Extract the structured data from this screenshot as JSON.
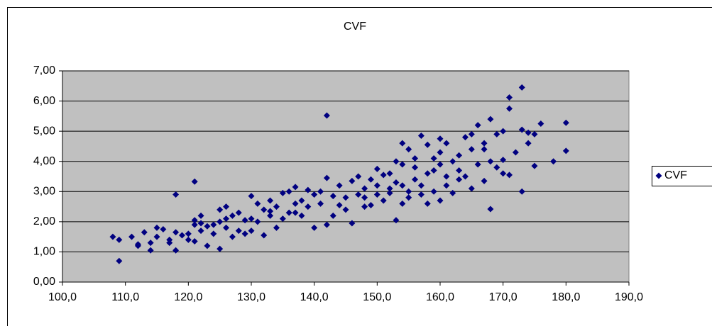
{
  "chart_data": {
    "type": "scatter",
    "title": "CVF",
    "x": [
      108,
      109,
      109,
      111,
      112,
      112,
      113,
      114,
      114,
      115,
      115,
      116,
      117,
      117,
      118,
      118,
      118,
      119,
      120,
      120,
      121,
      121,
      121,
      121,
      122,
      122,
      123,
      123,
      124,
      125,
      125,
      125,
      126,
      126,
      127,
      127,
      128,
      128,
      129,
      130,
      130,
      130,
      131,
      131,
      132,
      132,
      133,
      133,
      134,
      134,
      135,
      135,
      136,
      136,
      137,
      137,
      138,
      138,
      139,
      139,
      140,
      140,
      141,
      142,
      142,
      142,
      143,
      143,
      144,
      145,
      145,
      146,
      146,
      147,
      147,
      148,
      148,
      149,
      149,
      150,
      150,
      150,
      151,
      151,
      152,
      152,
      153,
      153,
      153,
      154,
      154,
      154,
      155,
      155,
      155,
      156,
      156,
      157,
      157,
      157,
      158,
      158,
      158,
      159,
      159,
      160,
      160,
      160,
      160,
      161,
      161,
      162,
      162,
      163,
      163,
      164,
      164,
      165,
      165,
      166,
      166,
      167,
      167,
      168,
      168,
      168,
      169,
      169,
      170,
      170,
      171,
      171,
      171,
      172,
      173,
      173,
      173,
      174,
      174,
      175,
      175,
      176,
      178,
      180,
      180,
      163,
      165,
      167,
      170,
      159,
      161,
      156,
      154,
      152,
      148,
      144,
      141,
      137,
      133,
      129,
      126,
      124,
      122
    ],
    "series": [
      {
        "name": "CVF",
        "color": "#000080",
        "values": [
          1.5,
          1.4,
          0.7,
          1.5,
          1.2,
          1.25,
          1.65,
          1.05,
          1.3,
          1.5,
          1.8,
          1.75,
          1.4,
          1.3,
          1.05,
          1.65,
          2.9,
          1.55,
          1.6,
          1.4,
          1.9,
          2.05,
          3.33,
          1.35,
          2.2,
          1.7,
          1.2,
          1.85,
          1.6,
          1.1,
          2.0,
          2.4,
          1.8,
          2.5,
          1.5,
          2.2,
          2.3,
          1.7,
          1.6,
          2.85,
          2.1,
          1.7,
          2.0,
          2.6,
          2.4,
          1.55,
          2.2,
          2.7,
          1.8,
          2.5,
          2.95,
          2.1,
          3.0,
          2.3,
          2.6,
          3.15,
          2.7,
          2.2,
          3.05,
          2.5,
          1.8,
          2.9,
          2.6,
          5.52,
          3.45,
          1.9,
          2.2,
          2.85,
          3.2,
          2.4,
          2.8,
          1.95,
          3.35,
          2.9,
          3.5,
          2.5,
          3.1,
          2.55,
          3.4,
          3.2,
          3.75,
          2.9,
          3.55,
          2.7,
          3.1,
          3.6,
          2.05,
          4.0,
          3.3,
          2.6,
          3.9,
          4.6,
          3.0,
          4.4,
          2.8,
          3.4,
          3.8,
          4.85,
          2.9,
          3.2,
          4.55,
          3.6,
          2.6,
          4.1,
          3.0,
          4.75,
          3.9,
          2.7,
          4.3,
          3.5,
          4.6,
          4.0,
          2.95,
          3.7,
          4.2,
          3.5,
          4.8,
          3.1,
          4.4,
          3.9,
          5.2,
          4.6,
          3.35,
          5.4,
          2.42,
          4.0,
          4.9,
          3.8,
          3.6,
          5.0,
          6.12,
          5.75,
          3.55,
          4.3,
          6.45,
          3.0,
          5.05,
          4.6,
          4.95,
          3.85,
          4.9,
          5.25,
          4.0,
          5.28,
          4.35,
          3.4,
          4.9,
          4.4,
          4.05,
          3.7,
          3.2,
          4.1,
          3.2,
          2.95,
          2.8,
          2.55,
          3.0,
          2.3,
          2.35,
          2.05,
          2.1,
          1.9,
          1.95
        ]
      }
    ],
    "xlim": [
      100,
      190
    ],
    "xticks": [
      {
        "value": 100,
        "label": "100,0"
      },
      {
        "value": 110,
        "label": "110,0"
      },
      {
        "value": 120,
        "label": "120,0"
      },
      {
        "value": 130,
        "label": "130,0"
      },
      {
        "value": 140,
        "label": "140,0"
      },
      {
        "value": 150,
        "label": "150,0"
      },
      {
        "value": 160,
        "label": "160,0"
      },
      {
        "value": 170,
        "label": "170,0"
      },
      {
        "value": 180,
        "label": "180,0"
      },
      {
        "value": 190,
        "label": "190,0"
      }
    ],
    "ylim": [
      0,
      7
    ],
    "yticks": [
      {
        "value": 0,
        "label": "0,00"
      },
      {
        "value": 1,
        "label": "1,00"
      },
      {
        "value": 2,
        "label": "2,00"
      },
      {
        "value": 3,
        "label": "3,00"
      },
      {
        "value": 4,
        "label": "4,00"
      },
      {
        "value": 5,
        "label": "5,00"
      },
      {
        "value": 6,
        "label": "6,00"
      },
      {
        "value": 7,
        "label": "7,00"
      }
    ],
    "grid": true,
    "legend": "right"
  }
}
